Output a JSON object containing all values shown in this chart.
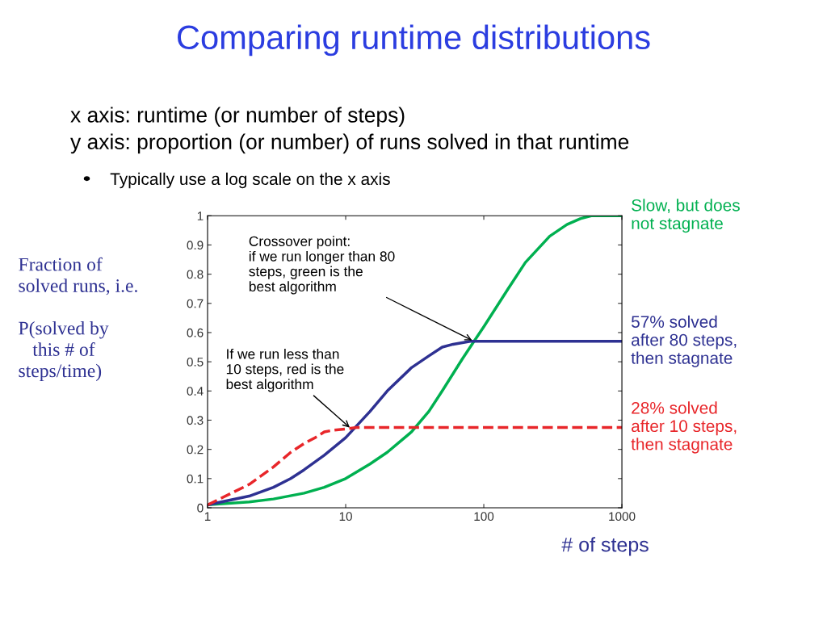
{
  "chart_data": {
    "type": "line",
    "title": "Comparing runtime distributions",
    "subtitle": "x axis: runtime (or number of steps)\ny axis: proportion (or number) of runs solved in that runtime",
    "xlabel": "# of steps",
    "ylabel": "Fraction of\nsolved runs, i.e.\n\nP(solved by\n   this # of\nsteps/time)",
    "log": "x",
    "xlim": [
      1,
      1000
    ],
    "xticks": [
      1,
      10,
      100,
      1000
    ],
    "ylim": [
      0,
      1
    ],
    "yticks": [
      0,
      {
        "value": 0.1,
        "label": "0.1"
      },
      {
        "value": 0.2,
        "label": "0.2"
      },
      {
        "value": 0.3,
        "label": "0.3"
      },
      {
        "value": 0.4,
        "label": "0.4"
      },
      {
        "value": 0.5,
        "label": "0.5"
      },
      {
        "value": 0.6,
        "label": "0.6"
      },
      {
        "value": 0.7,
        "label": "0.7"
      },
      {
        "value": 0.8,
        "label": "0.8"
      },
      {
        "value": 0.9,
        "label": "0.9"
      },
      1
    ],
    "grid": false,
    "legend": false,
    "marker": "none",
    "series": [
      {
        "name": "Slow, but does\nnot stagnate",
        "color": "#00b050",
        "line_style": "solid",
        "x": [
          1,
          2,
          3,
          5,
          7,
          10,
          15,
          20,
          30,
          40,
          50,
          70,
          85,
          100,
          150,
          200,
          300,
          400,
          500,
          600,
          1000
        ],
        "values": [
          0.01,
          0.02,
          0.03,
          0.05,
          0.07,
          0.1,
          0.15,
          0.19,
          0.26,
          0.33,
          0.4,
          0.51,
          0.57,
          0.62,
          0.75,
          0.84,
          0.93,
          0.97,
          0.99,
          1.0,
          1.0
        ]
      },
      {
        "name": "57% solved\nafter 80 steps,\nthen stagnate",
        "color": "#2e3192",
        "line_style": "solid",
        "x": [
          1,
          2,
          3,
          4,
          5,
          7,
          10,
          15,
          20,
          30,
          40,
          50,
          60,
          80,
          1000
        ],
        "values": [
          0.01,
          0.04,
          0.07,
          0.1,
          0.13,
          0.18,
          0.24,
          0.33,
          0.4,
          0.48,
          0.52,
          0.55,
          0.56,
          0.57,
          0.57
        ]
      },
      {
        "name": "28% solved\nafter 10 steps,\nthen stagnate",
        "color": "#e8262a",
        "line_style": "dashed",
        "x": [
          1,
          2,
          3,
          4,
          5,
          6,
          7,
          8,
          10,
          12,
          1000
        ],
        "values": [
          0.01,
          0.08,
          0.14,
          0.19,
          0.22,
          0.24,
          0.26,
          0.265,
          0.27,
          0.275,
          0.275
        ]
      }
    ],
    "annotations": [
      "Typically use a log scale on the x axis",
      {
        "text": "Crossover point:\nif we run longer than 80\nsteps, green is the\nbest algorithm",
        "x": 85,
        "y": 0.57
      },
      {
        "text": "If we run less than\n10 steps, red is the\nbest algorithm",
        "x": 11,
        "y": 0.27
      }
    ]
  }
}
